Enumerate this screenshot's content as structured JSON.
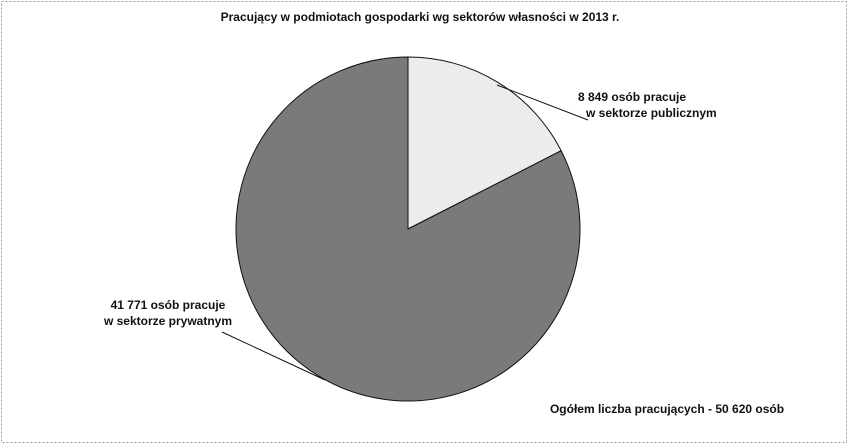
{
  "chart_data": {
    "type": "pie",
    "title": "Pracujący w podmiotach gospodarki wg sektorów własności w 2013 r.",
    "values": [
      8849,
      41771
    ],
    "value_labels": [
      [
        "8 849 osób pracuje",
        "w sektorze publicznym"
      ],
      [
        "41 771 osób pracuje",
        "w sektorze prywatnym"
      ]
    ],
    "colors": [
      "#ececec",
      "#7a7a7a"
    ],
    "annotation": "Ogółem liczba pracujących -  50 620 osób"
  }
}
